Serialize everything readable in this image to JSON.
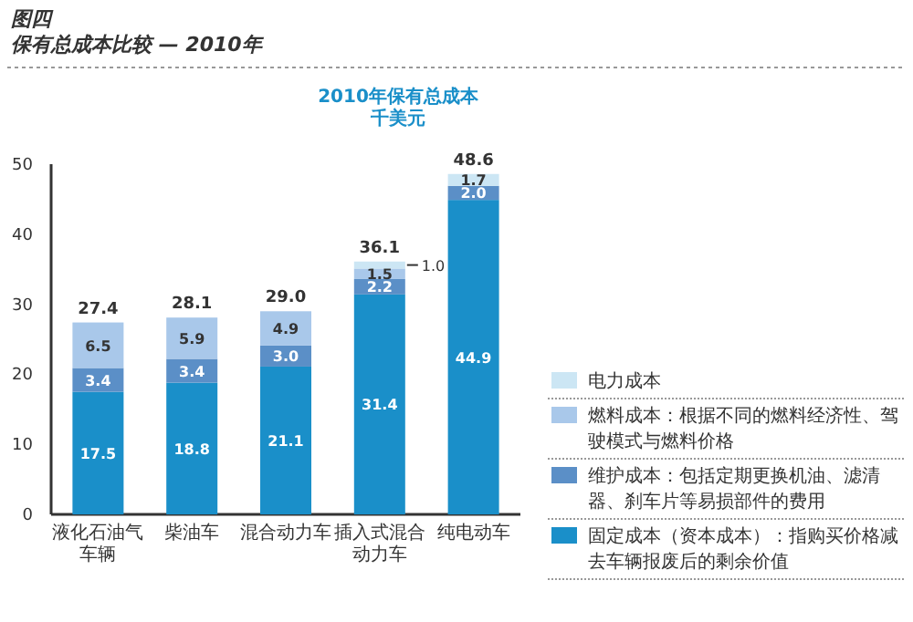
{
  "chart_data": {
    "type": "bar",
    "stacked": true,
    "title": "图四",
    "subtitle": "保有总成本比较 — 2010年",
    "ylabel": "2010年保有总成本千美元",
    "categories": [
      "液化石油气车辆",
      "柴油车",
      "混合动力车",
      "插入式混合动力车",
      "纯电动车"
    ],
    "series": [
      {
        "name": "固定成本（资本成本）：指购买价格减去车辆报废后的剩余价值",
        "color": "#1a8fc9",
        "values": [
          17.5,
          18.8,
          21.1,
          31.4,
          44.9
        ],
        "value_labels": [
          "17.5",
          "18.8",
          "21.1",
          "31.4",
          "44.9"
        ]
      },
      {
        "name": "维护成本：包括定期更换机油、滤清器、刹车片等易损部件的费用",
        "color": "#5b8fc7",
        "values": [
          3.4,
          3.4,
          3.0,
          2.2,
          2.0
        ],
        "value_labels": [
          "3.4",
          "3.4",
          "3.0",
          "2.2",
          "2.0"
        ]
      },
      {
        "name": "燃料成本：根据不同的燃料经济性、驾驶模式与燃料价格",
        "color": "#a9c8ea",
        "values": [
          6.5,
          5.9,
          4.9,
          1.5,
          null
        ],
        "value_labels": [
          "6.5",
          "5.9",
          "4.9",
          "1.5",
          null
        ]
      },
      {
        "name": "电力成本",
        "color": "#cce6f4",
        "values": [
          null,
          null,
          null,
          1.0,
          1.7
        ],
        "value_labels": [
          null,
          null,
          null,
          "1.0",
          "1.7"
        ]
      }
    ],
    "totals": [
      "27.4",
      "28.1",
      "29.0",
      "36.1",
      "48.6"
    ],
    "ylim": [
      0,
      50
    ],
    "yticks": [
      0,
      10,
      20,
      30,
      40,
      50
    ],
    "grid": false,
    "legend": "bottom right"
  }
}
